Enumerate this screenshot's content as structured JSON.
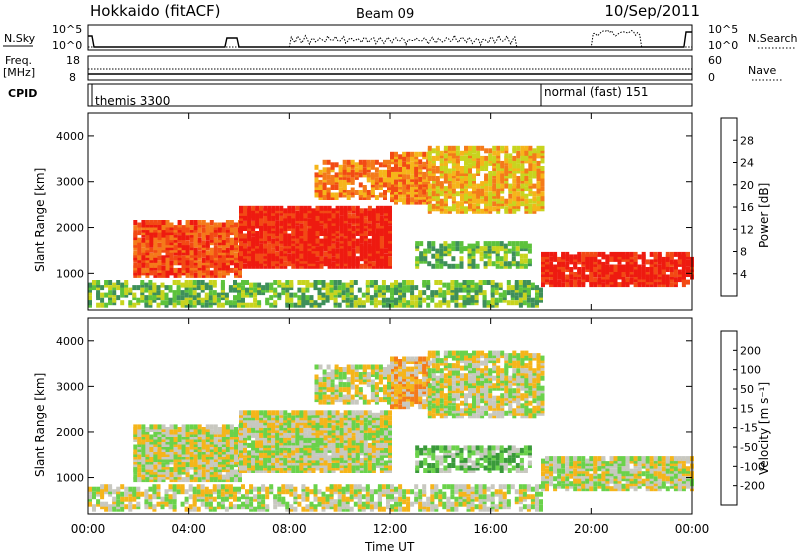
{
  "header": {
    "station": "Hokkaido (fitACF)",
    "beam": "Beam 09",
    "date": "10/Sep/2011"
  },
  "noise_panel": {
    "left_label": "N.Sky",
    "left_ticks": [
      "10^5",
      "10^0"
    ],
    "right_ticks": [
      "10^5",
      "10^0"
    ],
    "right_label": "N.Search"
  },
  "freq_panel": {
    "left_label_line1": "Freq.",
    "left_label_line2": "[MHz]",
    "left_ticks": [
      "18",
      "8"
    ],
    "right_ticks": [
      "60",
      "0"
    ],
    "right_label": "Nave"
  },
  "cpid_panel": {
    "label": "CPID",
    "modes": [
      {
        "name": "themis 3300",
        "start_hour": 0
      },
      {
        "name": "normal (fast) 151",
        "start_hour": 18
      }
    ]
  },
  "chart_data": [
    {
      "type": "heatmap",
      "quantity": "Power",
      "ylabel": "Slant Range [km]",
      "yticks": [
        "1000",
        "2000",
        "3000",
        "4000"
      ],
      "ylim": [
        200,
        4500
      ],
      "colorbar_label": "Power [dB]",
      "colorbar_ticks": [
        "28",
        "24",
        "20",
        "16",
        "12",
        "8",
        "4"
      ],
      "colorbar_colors": [
        "#0000ff",
        "#2a5fa8",
        "#3e8f5a",
        "#5cc23c",
        "#c8d41e",
        "#f5b51a",
        "#f47a1a",
        "#f24a14",
        "#ee1a10"
      ]
    },
    {
      "type": "heatmap",
      "quantity": "Velocity",
      "ylabel": "Slant Range [km]",
      "yticks": [
        "1000",
        "2000",
        "3000",
        "4000"
      ],
      "ylim": [
        200,
        4500
      ],
      "colorbar_label": "Velocity [m s⁻¹]",
      "colorbar_ticks": [
        "200",
        "100",
        "50",
        "15",
        "-15",
        "-50",
        "-100",
        "-200"
      ],
      "colorbar_colors": [
        "#1a2ca8",
        "#2a6a6a",
        "#3a9a3a",
        "#6ad24a",
        "#c8c8c0",
        "#f5b51a",
        "#f47a1a",
        "#f24a14",
        "#ee1010"
      ]
    }
  ],
  "x_axis": {
    "label": "Time UT",
    "ticks": [
      "00:00",
      "04:00",
      "08:00",
      "12:00",
      "16:00",
      "20:00",
      "00:00"
    ]
  }
}
